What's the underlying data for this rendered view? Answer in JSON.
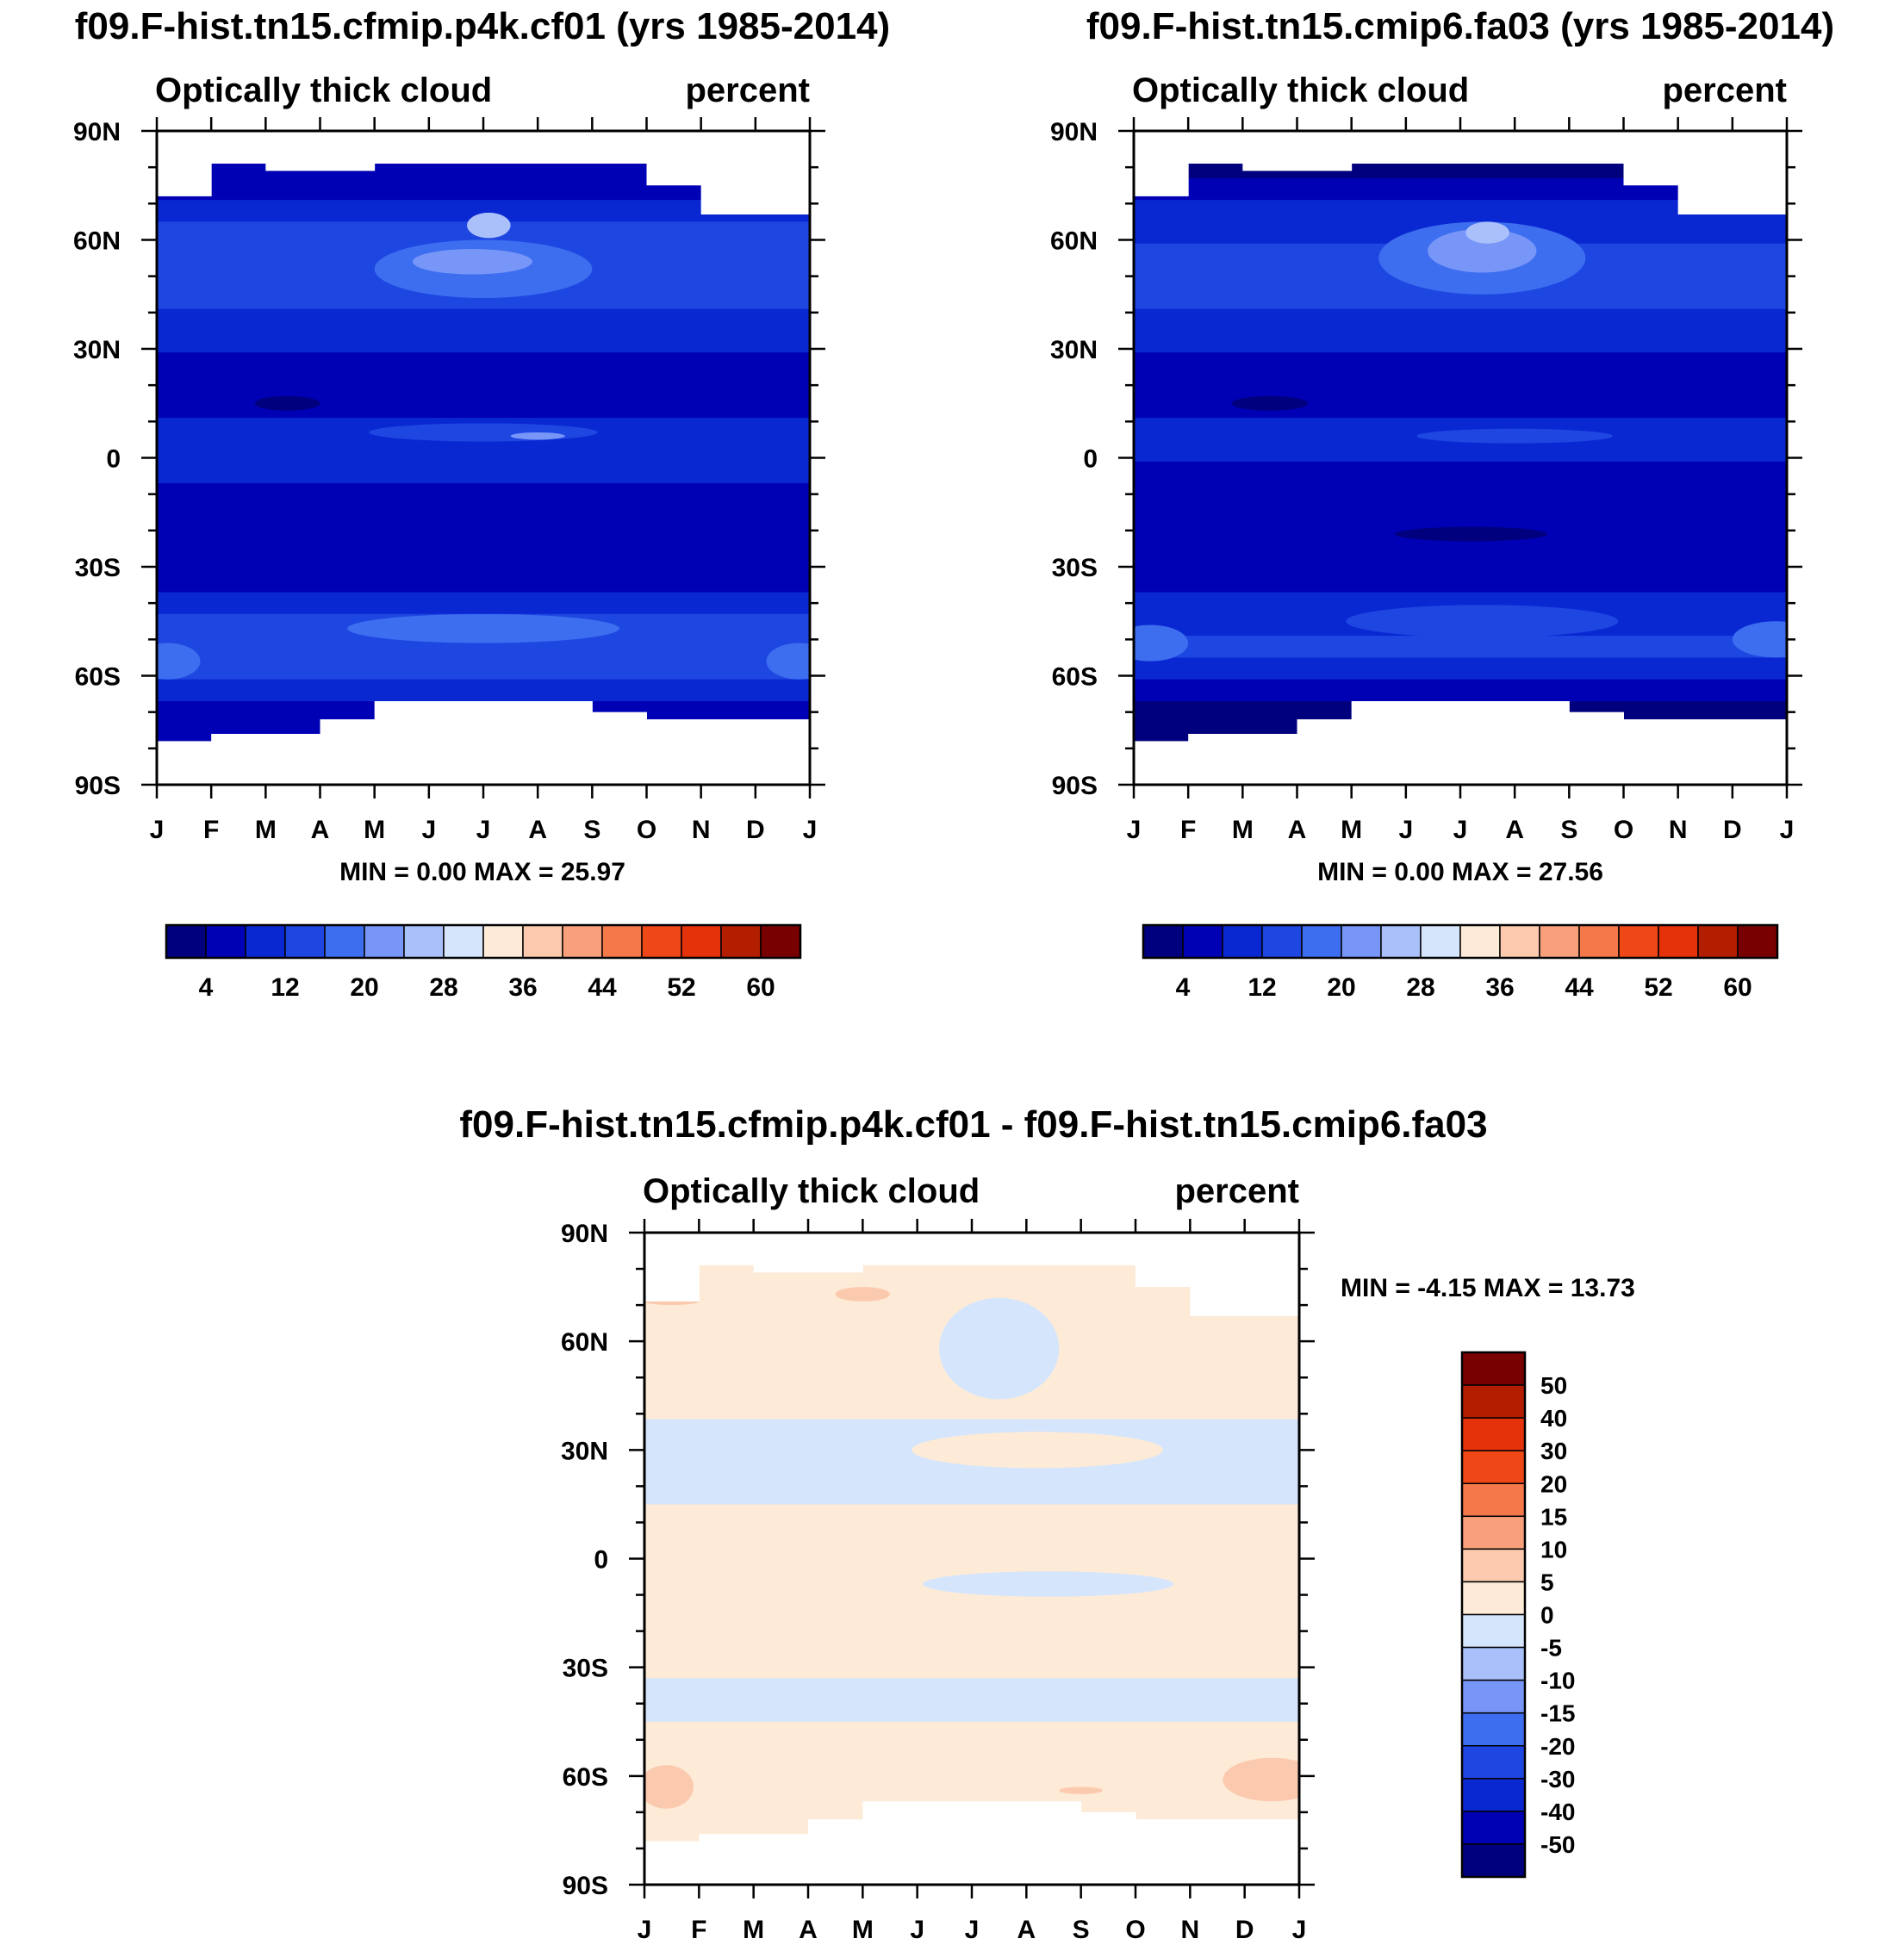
{
  "chart_data": [
    {
      "type": "heatmap",
      "title": "f09.F-hist.tn15.cfmip.p4k.cf01 (yrs 1985-2014)",
      "subtitle_left": "Optically thick cloud",
      "subtitle_right": "percent",
      "x_tick_labels": [
        "J",
        "F",
        "M",
        "A",
        "M",
        "J",
        "J",
        "A",
        "S",
        "O",
        "N",
        "D",
        "J"
      ],
      "y_tick_labels": [
        "90N",
        "60N",
        "30N",
        "0",
        "30S",
        "60S",
        "90S"
      ],
      "y_ticks": [
        90,
        60,
        30,
        0,
        -30,
        -60,
        -90
      ],
      "ylim": [
        -90,
        90
      ],
      "xlim": [
        0,
        12
      ],
      "stats": "MIN =   0.00 MAX =  25.97",
      "min": 0.0,
      "max": 25.97,
      "colorbar_labels": [
        "4",
        "12",
        "20",
        "28",
        "36",
        "44",
        "52",
        "60"
      ],
      "bands": [
        {
          "lat": 80,
          "level": 1
        },
        {
          "lat": 74,
          "level": 1
        },
        {
          "lat": 68,
          "level": 2
        },
        {
          "lat": 62,
          "level": 3
        },
        {
          "lat": 56,
          "level": 3
        },
        {
          "lat": 50,
          "level": 3
        },
        {
          "lat": 44,
          "level": 3
        },
        {
          "lat": 38,
          "level": 2
        },
        {
          "lat": 32,
          "level": 2
        },
        {
          "lat": 26,
          "level": 1
        },
        {
          "lat": 20,
          "level": 1
        },
        {
          "lat": 14,
          "level": 1
        },
        {
          "lat": 8,
          "level": 2
        },
        {
          "lat": 2,
          "level": 2
        },
        {
          "lat": -4,
          "level": 2
        },
        {
          "lat": -10,
          "level": 1
        },
        {
          "lat": -16,
          "level": 1
        },
        {
          "lat": -22,
          "level": 1
        },
        {
          "lat": -28,
          "level": 1
        },
        {
          "lat": -34,
          "level": 1
        },
        {
          "lat": -40,
          "level": 2
        },
        {
          "lat": -46,
          "level": 3
        },
        {
          "lat": -52,
          "level": 3
        },
        {
          "lat": -58,
          "level": 3
        },
        {
          "lat": -64,
          "level": 2
        },
        {
          "lat": -70,
          "level": 1
        },
        {
          "lat": -76,
          "level": 1
        }
      ],
      "features": [
        {
          "month": 6.0,
          "lat": 52,
          "w_months": 4.0,
          "h_deg": 16,
          "level": 4
        },
        {
          "month": 5.8,
          "lat": 54,
          "w_months": 2.2,
          "h_deg": 7,
          "level": 5
        },
        {
          "month": 6.1,
          "lat": 64,
          "w_months": 0.8,
          "h_deg": 7,
          "level": 6
        },
        {
          "month": 6.0,
          "lat": 7,
          "w_months": 4.2,
          "h_deg": 5,
          "level": 3
        },
        {
          "month": 7.0,
          "lat": 6,
          "w_months": 1.0,
          "h_deg": 2,
          "level": 5
        },
        {
          "month": 2.4,
          "lat": 15,
          "w_months": 1.2,
          "h_deg": 4,
          "level": 0
        },
        {
          "month": 0.2,
          "lat": -56,
          "w_months": 1.2,
          "h_deg": 10,
          "level": 4
        },
        {
          "month": 11.8,
          "lat": -56,
          "w_months": 1.2,
          "h_deg": 10,
          "level": 4
        },
        {
          "month": 6.0,
          "lat": -47,
          "w_months": 5.0,
          "h_deg": 8,
          "level": 4
        }
      ],
      "mask": [
        [
          0,
          1,
          72
        ],
        [
          1,
          2,
          81
        ],
        [
          2,
          4,
          79
        ],
        [
          4,
          9,
          81
        ],
        [
          9,
          10,
          75
        ],
        [
          10,
          12,
          67
        ]
      ],
      "mask_south": [
        [
          0,
          1,
          -78
        ],
        [
          1,
          3,
          -76
        ],
        [
          3,
          4,
          -72
        ],
        [
          4,
          8,
          -67
        ],
        [
          8,
          9,
          -70
        ],
        [
          9,
          12,
          -72
        ]
      ]
    },
    {
      "type": "heatmap",
      "title": "f09.F-hist.tn15.cmip6.fa03 (yrs 1985-2014)",
      "subtitle_left": "Optically thick cloud",
      "subtitle_right": "percent",
      "x_tick_labels": [
        "J",
        "F",
        "M",
        "A",
        "M",
        "J",
        "J",
        "A",
        "S",
        "O",
        "N",
        "D",
        "J"
      ],
      "y_tick_labels": [
        "90N",
        "60N",
        "30N",
        "0",
        "30S",
        "60S",
        "90S"
      ],
      "y_ticks": [
        90,
        60,
        30,
        0,
        -30,
        -60,
        -90
      ],
      "ylim": [
        -90,
        90
      ],
      "xlim": [
        0,
        12
      ],
      "stats": "MIN =   0.00 MAX =  27.56",
      "min": 0.0,
      "max": 27.56,
      "colorbar_labels": [
        "4",
        "12",
        "20",
        "28",
        "36",
        "44",
        "52",
        "60"
      ],
      "bands": [
        {
          "lat": 80,
          "level": 0
        },
        {
          "lat": 74,
          "level": 1
        },
        {
          "lat": 68,
          "level": 2
        },
        {
          "lat": 62,
          "level": 2
        },
        {
          "lat": 56,
          "level": 3
        },
        {
          "lat": 50,
          "level": 3
        },
        {
          "lat": 44,
          "level": 3
        },
        {
          "lat": 38,
          "level": 2
        },
        {
          "lat": 32,
          "level": 2
        },
        {
          "lat": 26,
          "level": 1
        },
        {
          "lat": 20,
          "level": 1
        },
        {
          "lat": 14,
          "level": 1
        },
        {
          "lat": 8,
          "level": 2
        },
        {
          "lat": 2,
          "level": 2
        },
        {
          "lat": -4,
          "level": 1
        },
        {
          "lat": -10,
          "level": 1
        },
        {
          "lat": -16,
          "level": 1
        },
        {
          "lat": -22,
          "level": 1
        },
        {
          "lat": -28,
          "level": 1
        },
        {
          "lat": -34,
          "level": 1
        },
        {
          "lat": -40,
          "level": 2
        },
        {
          "lat": -46,
          "level": 2
        },
        {
          "lat": -52,
          "level": 3
        },
        {
          "lat": -58,
          "level": 2
        },
        {
          "lat": -64,
          "level": 1
        },
        {
          "lat": -70,
          "level": 0
        },
        {
          "lat": -76,
          "level": 0
        }
      ],
      "features": [
        {
          "month": 6.4,
          "lat": 55,
          "w_months": 3.8,
          "h_deg": 20,
          "level": 4
        },
        {
          "month": 6.4,
          "lat": 57,
          "w_months": 2.0,
          "h_deg": 12,
          "level": 5
        },
        {
          "month": 6.5,
          "lat": 62,
          "w_months": 0.8,
          "h_deg": 6,
          "level": 6
        },
        {
          "month": 7.0,
          "lat": 6,
          "w_months": 3.6,
          "h_deg": 4,
          "level": 3
        },
        {
          "month": 2.5,
          "lat": 15,
          "w_months": 1.4,
          "h_deg": 4,
          "level": 0
        },
        {
          "month": 6.2,
          "lat": -21,
          "w_months": 2.8,
          "h_deg": 4,
          "level": 0
        },
        {
          "month": 0.3,
          "lat": -51,
          "w_months": 1.4,
          "h_deg": 10,
          "level": 4
        },
        {
          "month": 11.8,
          "lat": -50,
          "w_months": 1.6,
          "h_deg": 10,
          "level": 4
        },
        {
          "month": 6.4,
          "lat": -45,
          "w_months": 5.0,
          "h_deg": 9,
          "level": 3
        }
      ],
      "mask": [
        [
          0,
          1,
          72
        ],
        [
          1,
          2,
          81
        ],
        [
          2,
          4,
          79
        ],
        [
          4,
          9,
          81
        ],
        [
          9,
          10,
          75
        ],
        [
          10,
          12,
          67
        ]
      ],
      "mask_south": [
        [
          0,
          1,
          -78
        ],
        [
          1,
          3,
          -76
        ],
        [
          3,
          4,
          -72
        ],
        [
          4,
          8,
          -67
        ],
        [
          8,
          9,
          -70
        ],
        [
          9,
          12,
          -72
        ]
      ]
    },
    {
      "type": "heatmap",
      "title": "f09.F-hist.tn15.cfmip.p4k.cf01 - f09.F-hist.tn15.cmip6.fa03",
      "subtitle_left": "Optically thick cloud",
      "subtitle_right": "percent",
      "x_tick_labels": [
        "J",
        "F",
        "M",
        "A",
        "M",
        "J",
        "J",
        "A",
        "S",
        "O",
        "N",
        "D",
        "J"
      ],
      "y_tick_labels": [
        "90N",
        "60N",
        "30N",
        "0",
        "30S",
        "60S",
        "90S"
      ],
      "y_ticks": [
        90,
        60,
        30,
        0,
        -30,
        -60,
        -90
      ],
      "ylim": [
        -90,
        90
      ],
      "xlim": [
        0,
        12
      ],
      "stats": "MIN =  -4.15 MAX =  13.73",
      "min": -4.15,
      "max": 13.73,
      "colorbar_labels": [
        "50",
        "40",
        "30",
        "20",
        "15",
        "10",
        "5",
        "0",
        "-5",
        "-10",
        "-15",
        "-20",
        "-30",
        "-40",
        "-50"
      ],
      "bands": [
        {
          "lat": 80,
          "level": 8
        },
        {
          "lat": 70,
          "level": 8
        },
        {
          "lat": 60,
          "level": 8
        },
        {
          "lat": 50,
          "level": 8
        },
        {
          "lat": 41,
          "level": 8
        },
        {
          "lat": 36,
          "level": 7
        },
        {
          "lat": 30,
          "level": 7
        },
        {
          "lat": 24,
          "level": 7
        },
        {
          "lat": 18,
          "level": 7
        },
        {
          "lat": 12,
          "level": 8
        },
        {
          "lat": 6,
          "level": 8
        },
        {
          "lat": 0,
          "level": 8
        },
        {
          "lat": -6,
          "level": 8
        },
        {
          "lat": -12,
          "level": 8
        },
        {
          "lat": -18,
          "level": 8
        },
        {
          "lat": -24,
          "level": 8
        },
        {
          "lat": -30,
          "level": 8
        },
        {
          "lat": -36,
          "level": 7
        },
        {
          "lat": -42,
          "level": 7
        },
        {
          "lat": -48,
          "level": 8
        },
        {
          "lat": -54,
          "level": 8
        },
        {
          "lat": -60,
          "level": 8
        },
        {
          "lat": -66,
          "level": 8
        },
        {
          "lat": -72,
          "level": 8
        },
        {
          "lat": -78,
          "level": 8
        }
      ],
      "features": [
        {
          "month": 6.5,
          "lat": 58,
          "w_months": 2.2,
          "h_deg": 28,
          "level": 7
        },
        {
          "month": 7.2,
          "lat": 30,
          "w_months": 4.6,
          "h_deg": 10,
          "level": 8
        },
        {
          "month": 6.2,
          "lat": 22,
          "w_months": 1.2,
          "h_deg": 3,
          "level": 7
        },
        {
          "month": 7.4,
          "lat": -7,
          "w_months": 4.6,
          "h_deg": 7,
          "level": 7
        },
        {
          "month": 4.0,
          "lat": 73,
          "w_months": 1.0,
          "h_deg": 4,
          "level": 9
        },
        {
          "month": 0.5,
          "lat": 71,
          "w_months": 1.0,
          "h_deg": 2,
          "level": 9
        },
        {
          "month": 0.4,
          "lat": -63,
          "w_months": 1.0,
          "h_deg": 12,
          "level": 9
        },
        {
          "month": 11.5,
          "lat": -61,
          "w_months": 1.8,
          "h_deg": 12,
          "level": 9
        },
        {
          "month": 8.0,
          "lat": -64,
          "w_months": 0.8,
          "h_deg": 2,
          "level": 9
        }
      ],
      "mask": [
        [
          0,
          1,
          71
        ],
        [
          1,
          2,
          81
        ],
        [
          2,
          4,
          79
        ],
        [
          4,
          9,
          81
        ],
        [
          9,
          10,
          75
        ],
        [
          10,
          12,
          67
        ]
      ],
      "mask_south": [
        [
          0,
          1,
          -78
        ],
        [
          1,
          3,
          -76
        ],
        [
          3,
          4,
          -72
        ],
        [
          4,
          8,
          -67
        ],
        [
          8,
          9,
          -70
        ],
        [
          9,
          12,
          -72
        ]
      ]
    }
  ],
  "palettes": {
    "cloud": [
      "#00007e",
      "#0000b4",
      "#0a28d2",
      "#1e46e1",
      "#3c6eef",
      "#7896f8",
      "#aac0fb",
      "#d5e5fc",
      "#fdebd8",
      "#fbcaae",
      "#f8a07b",
      "#f4784a",
      "#ef4716",
      "#e6320a",
      "#b41e00",
      "#780000"
    ],
    "diff": [
      "#780000",
      "#b41e00",
      "#e6320a",
      "#ef4716",
      "#f4784a",
      "#f8a07b",
      "#fbcaae",
      "#fdebd8",
      "#d5e5fc",
      "#aac0fb",
      "#7896f8",
      "#3c6eef",
      "#1e46e1",
      "#0a28d2",
      "#0000b4",
      "#00007e"
    ],
    "diff_field": [
      "#00007e",
      "#0000b4",
      "#0a28d2",
      "#1e46e1",
      "#3c6eef",
      "#7896f8",
      "#aac0fb",
      "#d5e5fc",
      "#fdebd8",
      "#fbcaae",
      "#f8a07b"
    ]
  }
}
